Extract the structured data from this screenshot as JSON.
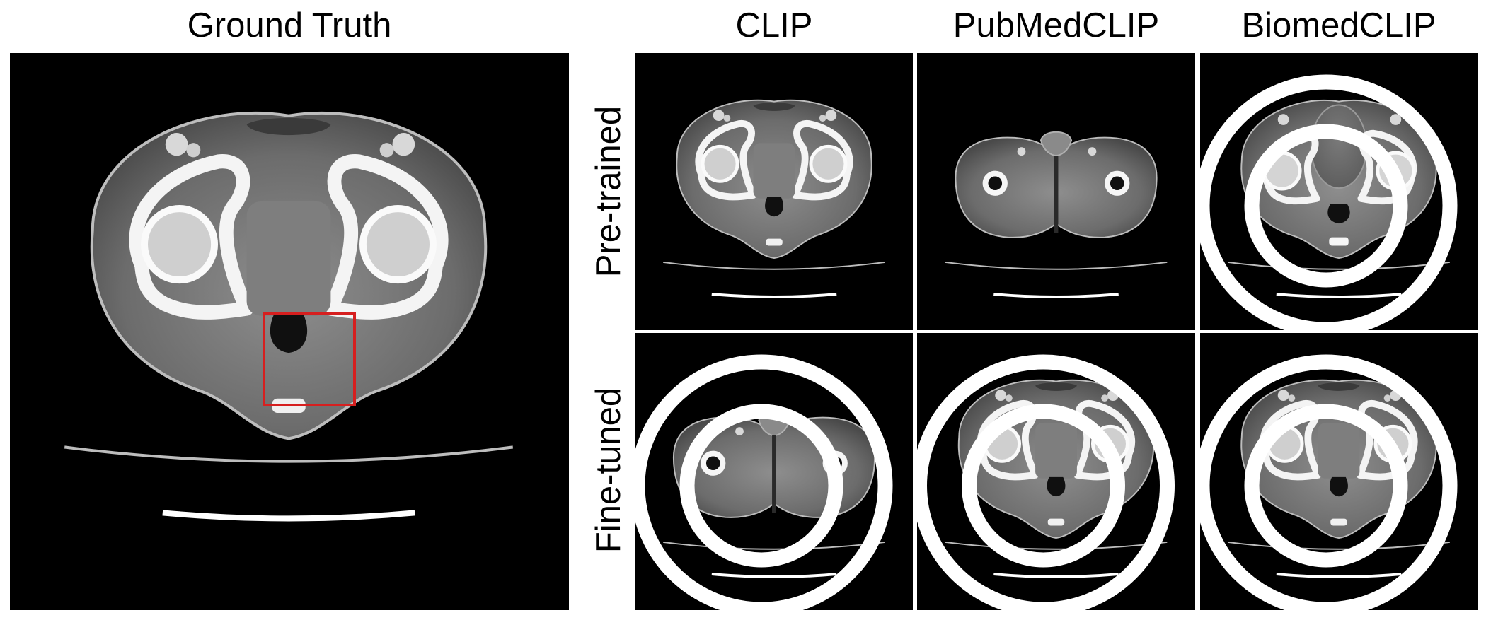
{
  "figure": {
    "gt_title": "Ground Truth",
    "columns": [
      {
        "title": "CLIP"
      },
      {
        "title": "PubMedCLIP"
      },
      {
        "title": "BiomedCLIP"
      }
    ],
    "rows": [
      {
        "label": "Pre-trained"
      },
      {
        "label": "Fine-tuned"
      }
    ],
    "panels": [
      {
        "row": "Pre-trained",
        "column": "CLIP",
        "view": "pelvis with hip joints",
        "marked": false
      },
      {
        "row": "Pre-trained",
        "column": "PubMedCLIP",
        "view": "upper thighs",
        "marked": false
      },
      {
        "row": "Pre-trained",
        "column": "BiomedCLIP",
        "view": "pelvis with bladder",
        "marked": true
      },
      {
        "row": "Fine-tuned",
        "column": "CLIP",
        "view": "upper thighs",
        "marked": true
      },
      {
        "row": "Fine-tuned",
        "column": "PubMedCLIP",
        "view": "pelvis with hip joints",
        "marked": true
      },
      {
        "row": "Fine-tuned",
        "column": "BiomedCLIP",
        "view": "pelvis with hip joints",
        "marked": true
      }
    ],
    "colors": {
      "background": "#ffffff",
      "scan_background": "#000000",
      "region_box": "#d61f1f",
      "marker": "#ffffff"
    }
  }
}
